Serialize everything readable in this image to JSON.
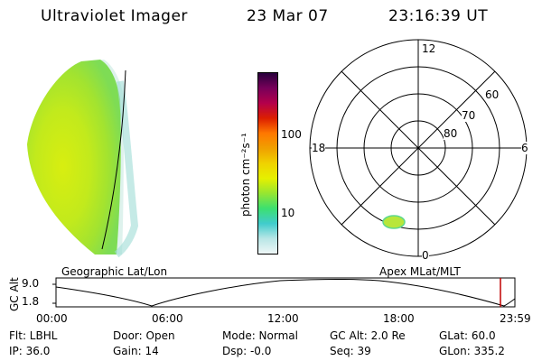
{
  "header": {
    "instrument": "Ultraviolet Imager",
    "date": "23 Mar 07",
    "time": "23:16:39 UT"
  },
  "colorbar": {
    "unit_label": "photon cm⁻²s⁻¹",
    "ticks": [
      "100",
      "10"
    ],
    "scale": "log",
    "colors": [
      "#eef6f6",
      "#b8e6e6",
      "#40cccc",
      "#3ce070",
      "#96e632",
      "#e6f000",
      "#f0d200",
      "#f0a000",
      "#ff7800",
      "#dc1e00",
      "#b4004b",
      "#78005a",
      "#28003c"
    ]
  },
  "polar_plot": {
    "lat_rings": [
      "60",
      "70",
      "80"
    ],
    "mlt_labels": {
      "top": "12",
      "left": "18",
      "right": "6",
      "bottom": "0"
    }
  },
  "altitude_panel": {
    "left_label": "Geographic Lat/Lon",
    "right_label": "Apex MLat/MLT",
    "y_label": "GC Alt",
    "y_ticks": [
      "9.0",
      "1.8"
    ],
    "x_ticks": [
      "00:00",
      "06:00",
      "12:00",
      "18:00",
      "23:59"
    ],
    "marker_color": "#c00000"
  },
  "status": [
    [
      "Flt: LBHL",
      "Door: Open",
      "Mode: Normal",
      "GC Alt: 2.0 Re",
      "GLat: 60.0"
    ],
    [
      "IP: 36.0",
      "Gain: 14",
      "Dsp: -0.0",
      "Seq: 39",
      "GLon: 335.2"
    ]
  ]
}
